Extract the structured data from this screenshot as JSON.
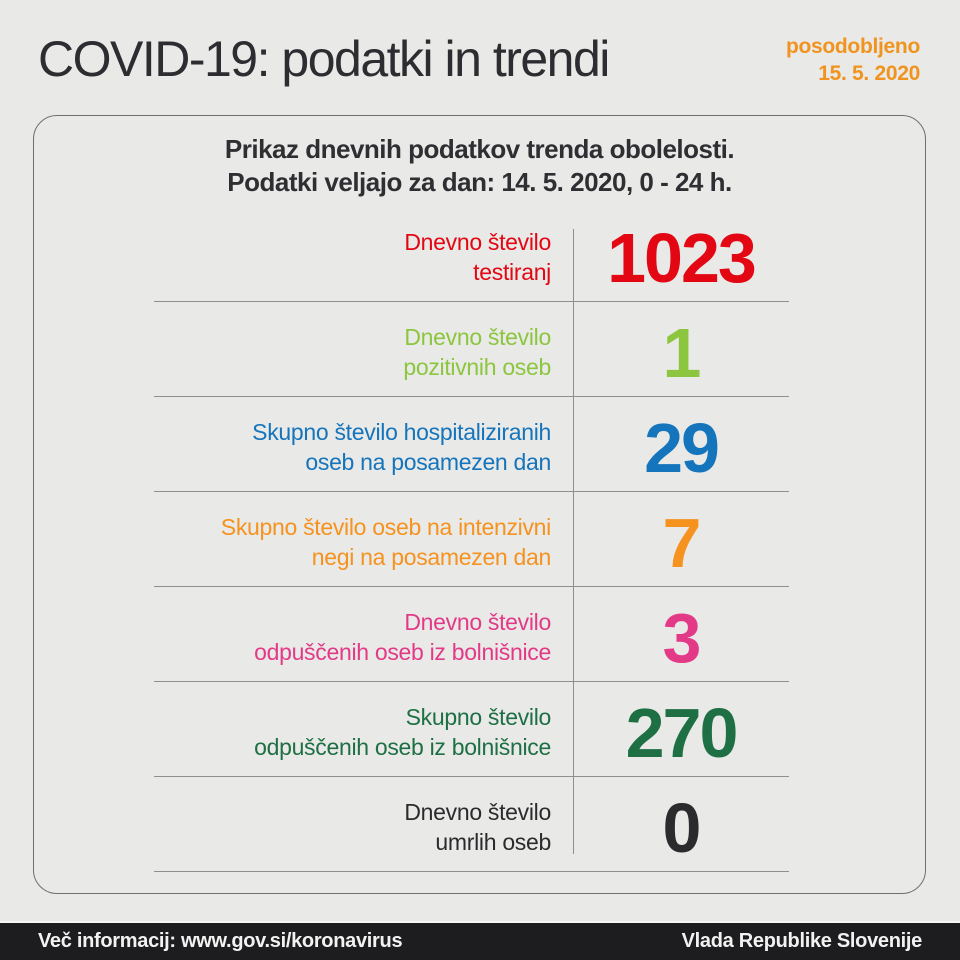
{
  "page": {
    "title": "COVID-19: podatki in trendi",
    "updated": {
      "label": "posodobljeno",
      "date": "15. 5. 2020"
    }
  },
  "card": {
    "header": {
      "line1": "Prikaz dnevnih podatkov trenda obolelosti.",
      "line2": "Podatki veljajo za dan: 14. 5. 2020, 0 - 24 h."
    },
    "rows": [
      {
        "label_line1": "Dnevno število",
        "label_line2": "testiranj",
        "value": "1023",
        "color": "#e30613"
      },
      {
        "label_line1": "Dnevno število",
        "label_line2": "pozitivnih oseb",
        "value": "1",
        "color": "#8cc63f"
      },
      {
        "label_line1": "Skupno število hospitaliziranih",
        "label_line2": "oseb na posamezen dan",
        "value": "29",
        "color": "#1474bc"
      },
      {
        "label_line1": "Skupno število oseb na intenzivni",
        "label_line2": "negi na posamezen dan",
        "value": "7",
        "color": "#f6921e"
      },
      {
        "label_line1": "Dnevno število",
        "label_line2": "odpuščenih oseb iz bolnišnice",
        "value": "3",
        "color": "#e33a88"
      },
      {
        "label_line1": "Skupno število",
        "label_line2": "odpuščenih oseb iz bolnišnice",
        "value": "270",
        "color": "#1e7044"
      },
      {
        "label_line1": "Dnevno število",
        "label_line2": "umrlih oseb",
        "value": "0",
        "color": "#2b2b2e"
      }
    ]
  },
  "footer": {
    "left": "Več informacij: www.gov.si/koronavirus",
    "right": "Vlada Republike Slovenije"
  },
  "colors": {
    "background": "#e9e9e7",
    "accent_orange": "#f0941f",
    "footer_bar": "#1d1d1f",
    "divider": "#8f8f8f"
  },
  "chart_data": {
    "type": "table",
    "title": "COVID-19: podatki in trendi",
    "subtitle": "Prikaz dnevnih podatkov trenda obolelosti. Podatki veljajo za dan: 14. 5. 2020, 0 - 24 h.",
    "updated": "15. 5. 2020",
    "categories": [
      "Dnevno število testiranj",
      "Dnevno število pozitivnih oseb",
      "Skupno število hospitaliziranih oseb na posamezen dan",
      "Skupno število oseb na intenzivni negi na posamezen dan",
      "Dnevno število odpuščenih oseb iz bolnišnice",
      "Skupno število odpuščenih oseb iz bolnišnice",
      "Dnevno število umrlih oseb"
    ],
    "values": [
      1023,
      1,
      29,
      7,
      3,
      270,
      0
    ],
    "value_colors": [
      "#e30613",
      "#8cc63f",
      "#1474bc",
      "#f6921e",
      "#e33a88",
      "#1e7044",
      "#2b2b2e"
    ],
    "source_note": "Več informacij: www.gov.si/koronavirus",
    "attribution": "Vlada Republike Slovenije"
  }
}
